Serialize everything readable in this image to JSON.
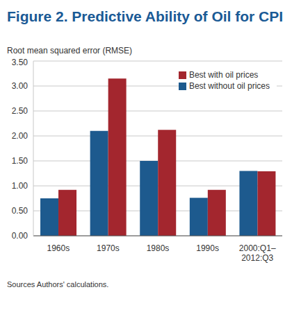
{
  "chart_data": {
    "type": "bar",
    "title": "Figure 2. Predictive Ability of Oil for CPI",
    "y_label": "Root mean squared error (RMSE)",
    "source": "Sources Authors' calculations.",
    "categories": [
      "1960s",
      "1970s",
      "1980s",
      "1990s",
      "2000:Q1–2012:Q3"
    ],
    "series": [
      {
        "name": "Best without oil prices",
        "color": "#1d5a8e",
        "values": [
          0.75,
          2.1,
          1.5,
          0.76,
          1.3
        ]
      },
      {
        "name": "Best with oil prices",
        "color": "#a3262e",
        "values": [
          0.92,
          3.15,
          2.12,
          0.92,
          1.29
        ]
      }
    ],
    "ylim": [
      0,
      3.5
    ],
    "yticks": [
      {
        "value": 0,
        "label": "0.00"
      },
      {
        "value": 0.5,
        "label": "0.50"
      },
      {
        "value": 1,
        "label": "1.00"
      },
      {
        "value": 1.5,
        "label": "1.50"
      },
      {
        "value": 2,
        "label": "2.00"
      },
      {
        "value": 2.5,
        "label": "2.50"
      },
      {
        "value": 3,
        "label": "3.00"
      },
      {
        "value": 3.5,
        "label": "3.50"
      }
    ],
    "grid": true,
    "legend": "upper right"
  }
}
